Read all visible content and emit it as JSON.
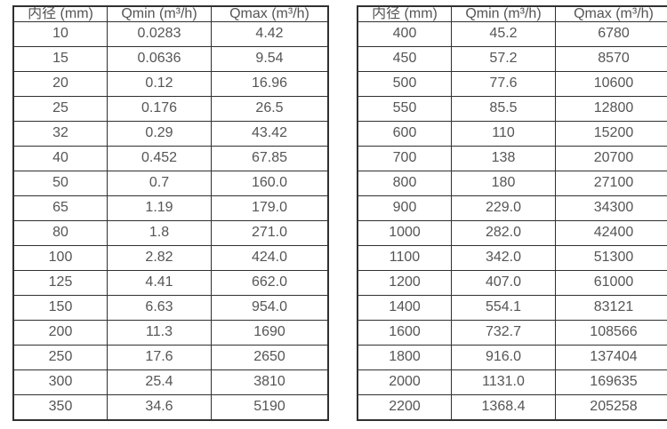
{
  "page": {
    "background_color": "#ffffff",
    "border_color": "#303030",
    "text_color": "#555555"
  },
  "tables": [
    {
      "name": "flow-table-dn10-350",
      "columns": [
        "内径 (mm)",
        "Qmin (m³/h)",
        "Qmax (m³/h)"
      ],
      "rows": [
        [
          "10",
          "0.0283",
          "4.42"
        ],
        [
          "15",
          "0.0636",
          "9.54"
        ],
        [
          "20",
          "0.12",
          "16.96"
        ],
        [
          "25",
          "0.176",
          "26.5"
        ],
        [
          "32",
          "0.29",
          "43.42"
        ],
        [
          "40",
          "0.452",
          "67.85"
        ],
        [
          "50",
          "0.7",
          "160.0"
        ],
        [
          "65",
          "1.19",
          "179.0"
        ],
        [
          "80",
          "1.8",
          "271.0"
        ],
        [
          "100",
          "2.82",
          "424.0"
        ],
        [
          "125",
          "4.41",
          "662.0"
        ],
        [
          "150",
          "6.63",
          "954.0"
        ],
        [
          "200",
          "11.3",
          "1690"
        ],
        [
          "250",
          "17.6",
          "2650"
        ],
        [
          "300",
          "25.4",
          "3810"
        ],
        [
          "350",
          "34.6",
          "5190"
        ]
      ]
    },
    {
      "name": "flow-table-dn400-2200",
      "columns": [
        "内径 (mm)",
        "Qmin (m³/h)",
        "Qmax (m³/h)"
      ],
      "rows": [
        [
          "400",
          "45.2",
          "6780"
        ],
        [
          "450",
          "57.2",
          "8570"
        ],
        [
          "500",
          "77.6",
          "10600"
        ],
        [
          "550",
          "85.5",
          "12800"
        ],
        [
          "600",
          "110",
          "15200"
        ],
        [
          "700",
          "138",
          "20700"
        ],
        [
          "800",
          "180",
          "27100"
        ],
        [
          "900",
          "229.0",
          "34300"
        ],
        [
          "1000",
          "282.0",
          "42400"
        ],
        [
          "1100",
          "342.0",
          "51300"
        ],
        [
          "1200",
          "407.0",
          "61000"
        ],
        [
          "1400",
          "554.1",
          "83121"
        ],
        [
          "1600",
          "732.7",
          "108566"
        ],
        [
          "1800",
          "916.0",
          "137404"
        ],
        [
          "2000",
          "1131.0",
          "169635"
        ],
        [
          "2200",
          "1368.4",
          "205258"
        ]
      ]
    }
  ]
}
